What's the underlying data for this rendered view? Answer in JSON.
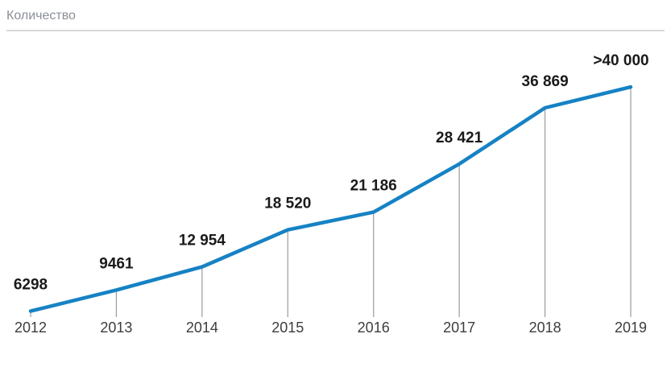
{
  "header": {
    "title": "Количество"
  },
  "colors": {
    "line": "#1682c4",
    "dropline": "#9b9b9b",
    "value_label": "#1a1a1a",
    "year_label": "#3d3d3d",
    "title": "#8b9096",
    "divider": "#d9d9d9"
  },
  "chart_data": {
    "type": "line",
    "title": "Количество",
    "categories": [
      "2012",
      "2013",
      "2014",
      "2015",
      "2016",
      "2017",
      "2018",
      "2019"
    ],
    "values": [
      6298,
      9461,
      12954,
      18520,
      21186,
      28421,
      36869,
      40000
    ],
    "value_labels": [
      "6298",
      "9461",
      "12 954",
      "18 520",
      "21 186",
      "28 421",
      "36 869",
      ">40 000"
    ],
    "xlabel": "",
    "ylabel": "",
    "ylim": [
      5400,
      48000
    ],
    "grid": false,
    "legend": "none",
    "droplines": true
  }
}
